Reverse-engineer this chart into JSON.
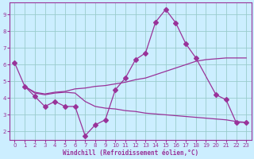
{
  "xlabel": "Windchill (Refroidissement éolien,°C)",
  "background_color": "#cceeff",
  "grid_color": "#99cccc",
  "line_color": "#993399",
  "xlim": [
    -0.5,
    23.5
  ],
  "ylim": [
    1.5,
    9.7
  ],
  "xticks": [
    0,
    1,
    2,
    3,
    4,
    5,
    6,
    7,
    8,
    9,
    10,
    11,
    12,
    13,
    14,
    15,
    16,
    17,
    18,
    19,
    20,
    21,
    22,
    23
  ],
  "yticks": [
    2,
    3,
    4,
    5,
    6,
    7,
    8,
    9
  ],
  "series_with_markers": [
    {
      "x": [
        0,
        1,
        2,
        3,
        4,
        5,
        6,
        7,
        8,
        9,
        10,
        11,
        12,
        13,
        14,
        15,
        16,
        17,
        18,
        20,
        21,
        22,
        23
      ],
      "y": [
        6.1,
        4.7,
        4.1,
        3.5,
        3.8,
        3.5,
        3.5,
        1.75,
        2.4,
        2.7,
        4.5,
        5.2,
        6.3,
        6.7,
        8.55,
        9.3,
        8.5,
        7.25,
        6.4,
        4.2,
        3.9,
        2.55,
        2.55
      ]
    }
  ],
  "series_smooth_upper": {
    "x": [
      1,
      2,
      3,
      4,
      5,
      6,
      7,
      8,
      9,
      10,
      11,
      12,
      13,
      14,
      15,
      16,
      17,
      18,
      19,
      20,
      21,
      22,
      23
    ],
    "y": [
      4.7,
      4.35,
      4.25,
      4.35,
      4.4,
      4.55,
      4.6,
      4.7,
      4.75,
      4.85,
      4.95,
      5.1,
      5.2,
      5.4,
      5.6,
      5.8,
      6.0,
      6.2,
      6.3,
      6.35,
      6.4,
      6.4,
      6.4
    ]
  },
  "series_smooth_lower": {
    "x": [
      1,
      2,
      3,
      4,
      5,
      6,
      7,
      8,
      9,
      10,
      11,
      12,
      13,
      14,
      15,
      16,
      17,
      18,
      19,
      20,
      21,
      22,
      23
    ],
    "y": [
      4.7,
      4.3,
      4.2,
      4.3,
      4.35,
      4.3,
      3.8,
      3.5,
      3.4,
      3.35,
      3.25,
      3.2,
      3.1,
      3.05,
      3.0,
      2.95,
      2.9,
      2.85,
      2.8,
      2.75,
      2.7,
      2.6,
      2.55
    ]
  }
}
